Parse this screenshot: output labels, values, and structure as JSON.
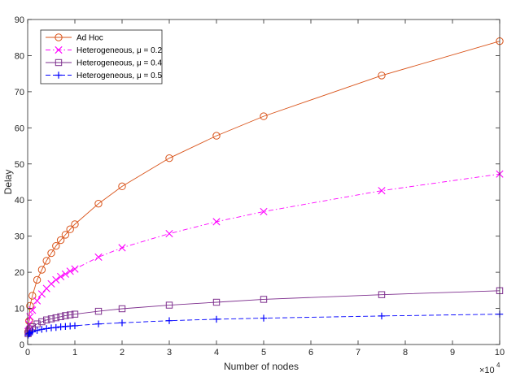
{
  "chart_data": {
    "type": "line",
    "xlabel": "Number of nodes",
    "ylabel": "Delay",
    "x_exponent_label": "×10",
    "x_exponent_power": "4",
    "xlim": [
      0,
      100000
    ],
    "ylim": [
      0,
      90
    ],
    "xticks": [
      0,
      10000,
      20000,
      30000,
      40000,
      50000,
      60000,
      70000,
      80000,
      90000,
      100000
    ],
    "xtick_labels": [
      "0",
      "1",
      "2",
      "3",
      "4",
      "5",
      "6",
      "7",
      "8",
      "9",
      "10"
    ],
    "yticks": [
      0,
      10,
      20,
      30,
      40,
      50,
      60,
      70,
      80,
      90
    ],
    "ytick_labels": [
      "0",
      "10",
      "20",
      "30",
      "40",
      "50",
      "60",
      "70",
      "80",
      "90"
    ],
    "legend_position": "top-left",
    "grid": false,
    "x": [
      100,
      300,
      500,
      1000,
      2000,
      3000,
      4000,
      5000,
      6000,
      7000,
      8000,
      9000,
      10000,
      15000,
      20000,
      30000,
      40000,
      50000,
      75000,
      100000
    ],
    "series": [
      {
        "name": "Ad Hoc",
        "color": "#d95319",
        "marker": "circle",
        "line_style": "solid",
        "values": [
          3.5,
          6.5,
          10.7,
          13.5,
          17.9,
          20.7,
          23.2,
          25.3,
          27.3,
          28.9,
          30.4,
          31.9,
          33.3,
          39.0,
          43.8,
          51.6,
          57.8,
          63.2,
          74.5,
          84.0
        ]
      },
      {
        "name": "Heterogeneous, μ = 0.2",
        "color": "#ff00ff",
        "marker": "x",
        "line_style": "dashdot",
        "values": [
          3.6,
          5.6,
          7.7,
          9.5,
          12.1,
          14.0,
          15.5,
          16.8,
          17.9,
          18.8,
          19.5,
          20.3,
          20.9,
          24.2,
          26.8,
          30.7,
          34.0,
          36.8,
          42.6,
          47.2
        ]
      },
      {
        "name": "Heterogeneous, μ = 0.4",
        "color": "#7e2f8e",
        "marker": "square",
        "line_style": "solid",
        "values": [
          3.0,
          3.8,
          4.3,
          4.9,
          5.7,
          6.3,
          6.8,
          7.1,
          7.4,
          7.7,
          8.0,
          8.2,
          8.4,
          9.2,
          9.9,
          10.9,
          11.7,
          12.5,
          13.8,
          14.9
        ]
      },
      {
        "name": "Heterogeneous, μ = 0.5",
        "color": "#0000ff",
        "marker": "plus",
        "line_style": "dashed",
        "values": [
          2.6,
          3.0,
          3.2,
          3.5,
          3.9,
          4.2,
          4.4,
          4.6,
          4.7,
          4.9,
          5.0,
          5.1,
          5.2,
          5.7,
          6.0,
          6.6,
          7.0,
          7.3,
          7.9,
          8.4
        ]
      }
    ]
  }
}
